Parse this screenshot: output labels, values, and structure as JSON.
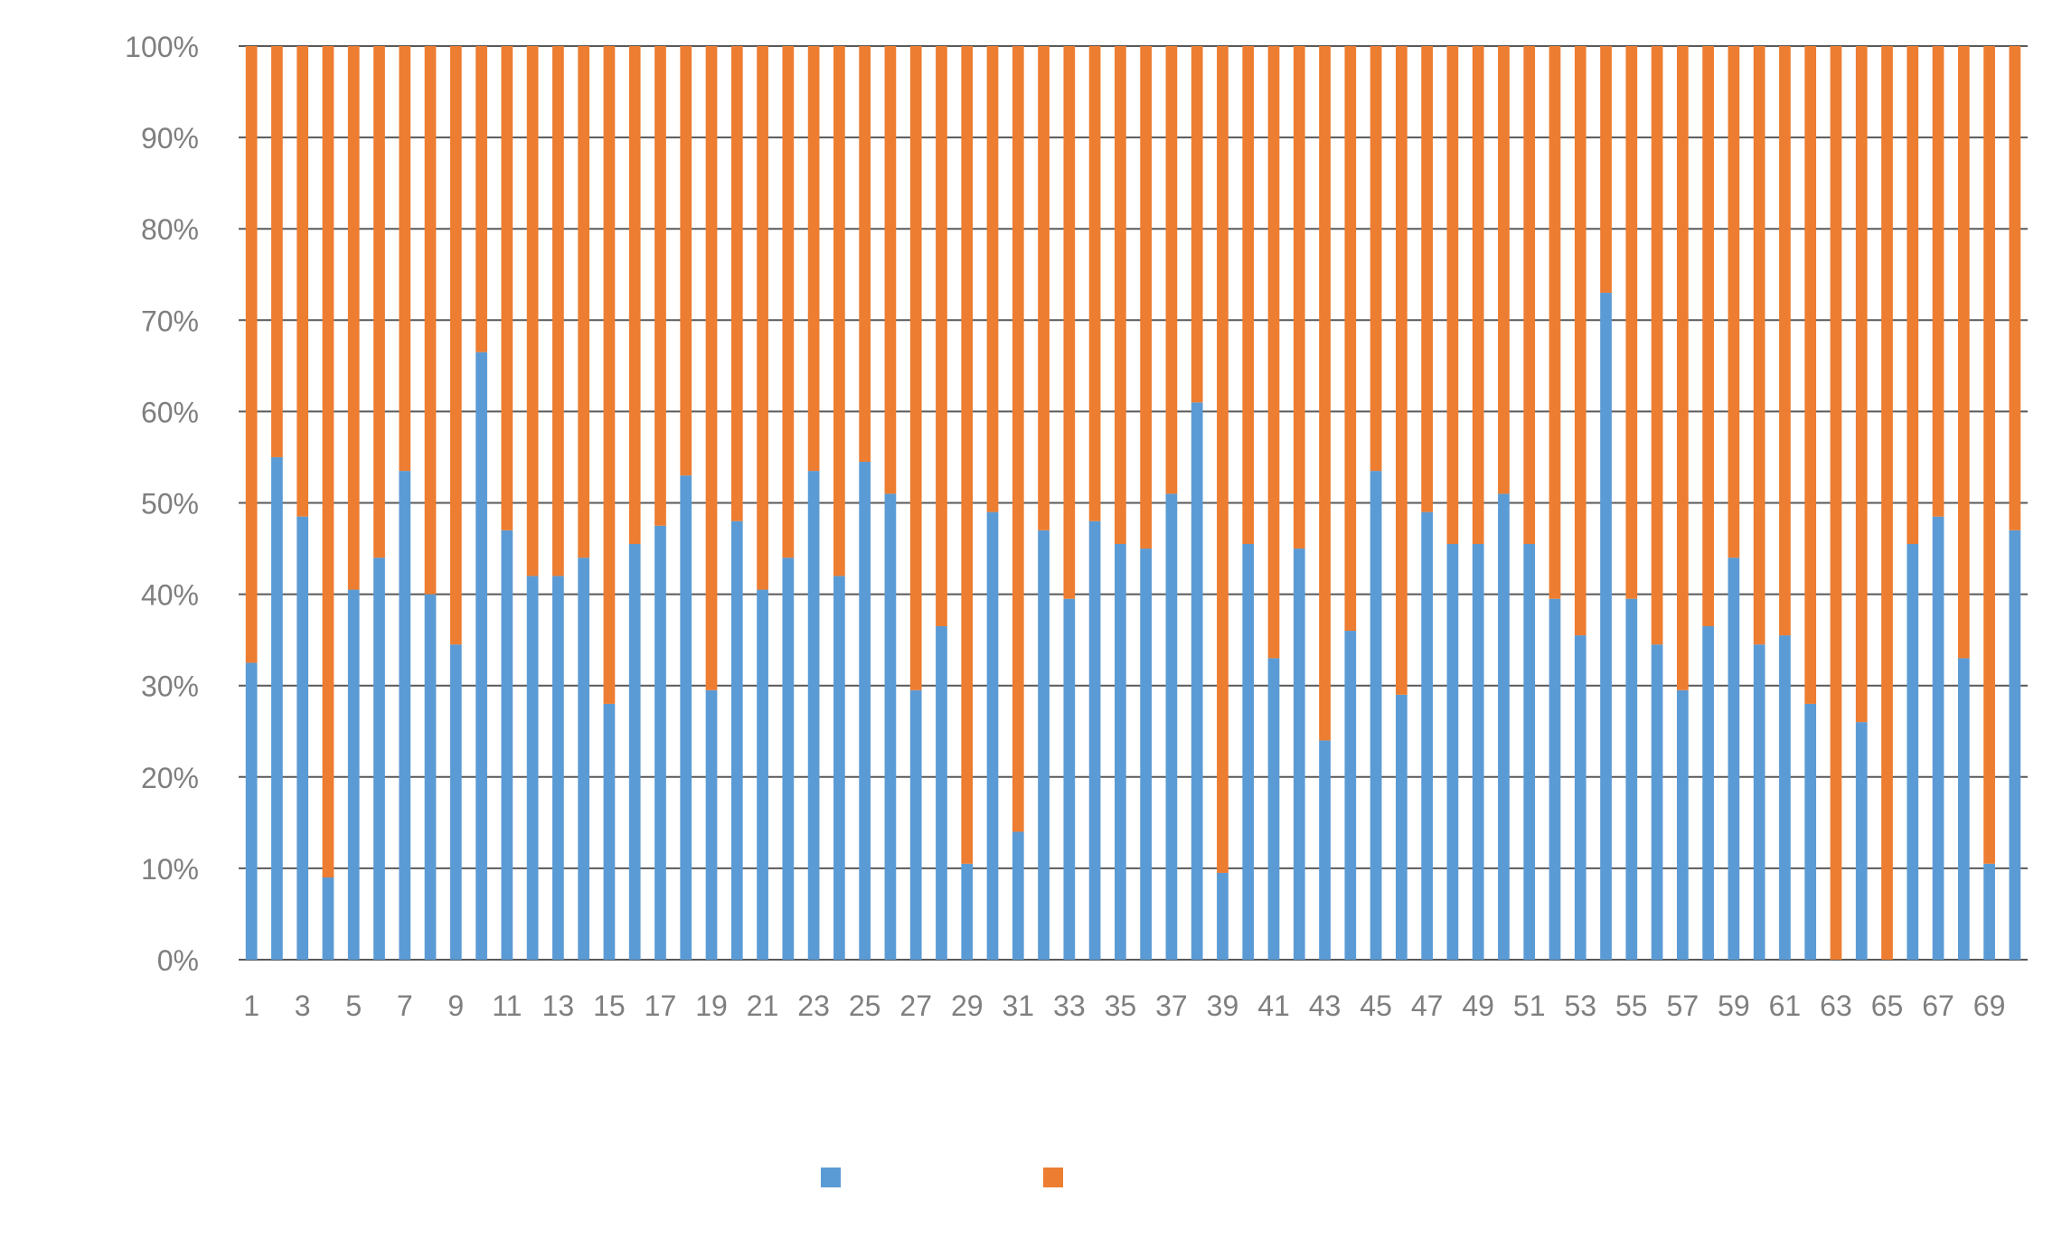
{
  "chart_data": {
    "type": "bar",
    "stacked": "percent",
    "title": "",
    "xlabel": "",
    "ylabel": "",
    "ylim": [
      0,
      100
    ],
    "y_ticks": [
      "0%",
      "10%",
      "20%",
      "30%",
      "40%",
      "50%",
      "60%",
      "70%",
      "80%",
      "90%",
      "100%"
    ],
    "grid": true,
    "legend_position": "bottom",
    "categories": [
      1,
      2,
      3,
      4,
      5,
      6,
      7,
      8,
      9,
      10,
      11,
      12,
      13,
      14,
      15,
      16,
      17,
      18,
      19,
      20,
      21,
      22,
      23,
      24,
      25,
      26,
      27,
      28,
      29,
      30,
      31,
      32,
      33,
      34,
      35,
      36,
      37,
      38,
      39,
      40,
      41,
      42,
      43,
      44,
      45,
      46,
      47,
      48,
      49,
      50,
      51,
      52,
      53,
      54,
      55,
      56,
      57,
      58,
      59,
      60,
      61,
      62,
      63,
      64,
      65,
      66,
      67,
      68,
      69,
      70
    ],
    "x_tick_labels": [
      "1",
      "3",
      "5",
      "7",
      "9",
      "11",
      "13",
      "15",
      "17",
      "19",
      "21",
      "23",
      "25",
      "27",
      "29",
      "31",
      "33",
      "35",
      "37",
      "39",
      "41",
      "43",
      "45",
      "47",
      "49",
      "51",
      "53",
      "55",
      "57",
      "59",
      "61",
      "63",
      "65",
      "67",
      "69"
    ],
    "series": [
      {
        "name": "",
        "color": "#5b9bd5",
        "values": [
          32.5,
          55,
          48.5,
          9,
          40.5,
          44,
          53.5,
          40,
          34.5,
          66.5,
          47,
          42,
          42,
          44,
          28,
          45.5,
          47.5,
          53,
          29.5,
          48,
          40.5,
          44,
          53.5,
          42,
          54.5,
          51,
          29.5,
          36.5,
          10.5,
          49,
          14,
          47,
          39.5,
          48,
          45.5,
          45,
          51,
          61,
          9.5,
          45.5,
          33,
          45,
          24,
          36,
          53.5,
          29,
          49,
          45.5,
          45.5,
          51,
          45.5,
          39.5,
          35.5,
          73,
          39.5,
          34.5,
          29.5,
          36.5,
          44,
          34.5,
          35.5,
          28,
          0,
          26,
          0,
          45.5,
          48.5,
          33,
          10.5,
          47
        ]
      },
      {
        "name": "",
        "color": "#ed7d31",
        "values": [
          67.5,
          45,
          51.5,
          91,
          59.5,
          56,
          46.5,
          60,
          65.5,
          33.5,
          53,
          58,
          58,
          56,
          72,
          54.5,
          52.5,
          47,
          70.5,
          52,
          59.5,
          56,
          46.5,
          58,
          45.5,
          49,
          70.5,
          63.5,
          89.5,
          51,
          86,
          53,
          60.5,
          52,
          54.5,
          55,
          49,
          39,
          90.5,
          54.5,
          67,
          55,
          76,
          64,
          46.5,
          71,
          51,
          54.5,
          54.5,
          49,
          54.5,
          60.5,
          64.5,
          27,
          60.5,
          65.5,
          70.5,
          63.5,
          56,
          65.5,
          64.5,
          72,
          100,
          74,
          100,
          54.5,
          51.5,
          67,
          89.5,
          53
        ]
      }
    ]
  }
}
